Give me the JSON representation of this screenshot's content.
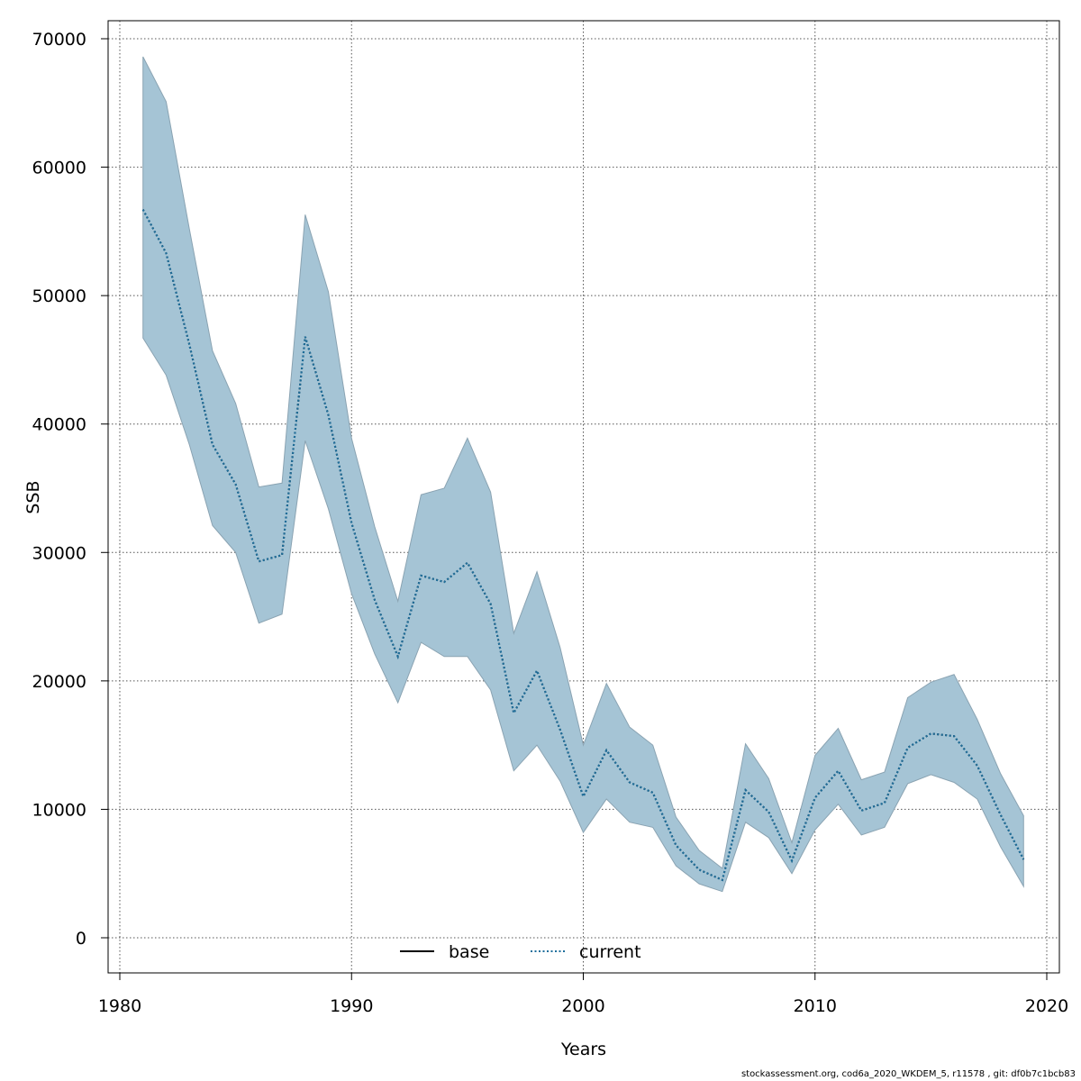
{
  "chart_data": {
    "type": "line",
    "xlabel": "Years",
    "ylabel": "SSB",
    "xlim": [
      1980,
      2020
    ],
    "ylim": [
      0,
      70000
    ],
    "xticks": [
      "1980",
      "1990",
      "2000",
      "2010",
      "2020"
    ],
    "yticks": [
      "0",
      "10000",
      "20000",
      "30000",
      "40000",
      "50000",
      "60000",
      "70000"
    ],
    "grid": true,
    "legend_position": "bottom",
    "x": [
      1981,
      1982,
      1983,
      1984,
      1985,
      1986,
      1987,
      1988,
      1989,
      1990,
      1991,
      1992,
      1993,
      1994,
      1995,
      1996,
      1997,
      1998,
      1999,
      2000,
      2001,
      2002,
      2003,
      2004,
      2005,
      2006,
      2007,
      2008,
      2009,
      2010,
      2011,
      2012,
      2013,
      2014,
      2015,
      2016,
      2017,
      2018,
      2019
    ],
    "series": [
      {
        "name": "base",
        "style": "solid",
        "color": "#000000",
        "values": [
          56700,
          53300,
          46200,
          38400,
          35300,
          29300,
          29800,
          46800,
          40700,
          32300,
          26300,
          21900,
          28200,
          27700,
          29200,
          26000,
          17500,
          20800,
          16200,
          11000,
          14600,
          12100,
          11300,
          7200,
          5300,
          4500,
          11500,
          9800,
          6000,
          10900,
          13000,
          9900,
          10500,
          14800,
          15900,
          15700,
          13400,
          9600,
          6100
        ]
      },
      {
        "name": "current",
        "style": "dotted",
        "color": "#1f6f9c",
        "values": [
          56700,
          53300,
          46200,
          38400,
          35300,
          29300,
          29800,
          46800,
          40700,
          32300,
          26300,
          21900,
          28200,
          27700,
          29200,
          26000,
          17500,
          20800,
          16200,
          11000,
          14600,
          12100,
          11300,
          7200,
          5300,
          4500,
          11500,
          9800,
          6000,
          10900,
          13000,
          9900,
          10500,
          14800,
          15900,
          15700,
          13400,
          9600,
          6100
        ]
      }
    ],
    "band": {
      "color": "#a5c4d5",
      "upper": [
        68600,
        65100,
        55200,
        45700,
        41600,
        35100,
        35400,
        56300,
        50300,
        38900,
        32000,
        26200,
        34500,
        35000,
        38900,
        34700,
        23700,
        28500,
        22600,
        15000,
        19800,
        16400,
        15000,
        9400,
        6800,
        5400,
        15100,
        12400,
        7400,
        14200,
        16300,
        12300,
        12900,
        18700,
        19900,
        20500,
        17000,
        12800,
        9500
      ],
      "lower": [
        46700,
        43800,
        38400,
        32100,
        30000,
        24500,
        25200,
        38700,
        33400,
        26800,
        22100,
        18300,
        23000,
        21900,
        21900,
        19300,
        13000,
        15000,
        12200,
        8200,
        10800,
        9000,
        8600,
        5600,
        4200,
        3600,
        9000,
        7800,
        5000,
        8400,
        10400,
        8000,
        8600,
        12000,
        12700,
        12100,
        10800,
        7100,
        4000
      ]
    }
  },
  "footer": "stockassessment.org, cod6a_2020_WKDEM_5, r11578 , git: df0b7c1bcb83"
}
